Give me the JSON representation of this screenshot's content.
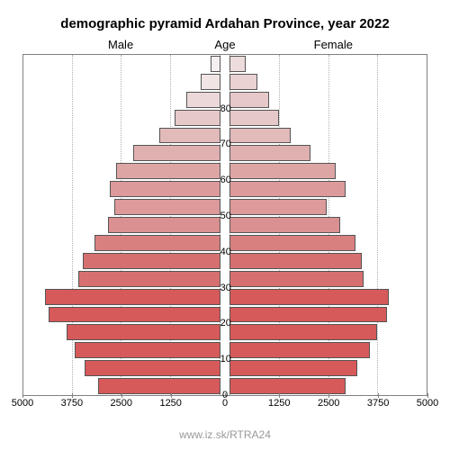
{
  "title": "demographic pyramid Ardahan Province, year 2022",
  "labels": {
    "male": "Male",
    "age": "Age",
    "female": "Female"
  },
  "watermark": "www.iz.sk/RTRA24",
  "chart": {
    "type": "population-pyramid",
    "background_color": "#ffffff",
    "border_color": "#808080",
    "grid_color": "#b0b0b0",
    "title_fontsize": 15,
    "label_fontsize": 13,
    "tick_fontsize": 11,
    "x_axis": {
      "max": 5000,
      "ticks": [
        5000,
        3750,
        2500,
        1250,
        0,
        1250,
        2500,
        3750,
        5000
      ]
    },
    "y_axis": {
      "ticks": [
        0,
        10,
        20,
        30,
        40,
        50,
        60,
        70,
        80
      ]
    },
    "age_groups": [
      {
        "age": 0,
        "male": 3100,
        "female": 2950,
        "color_m": "#d65a5a",
        "color_f": "#d65a5a"
      },
      {
        "age": 5,
        "male": 3450,
        "female": 3250,
        "color_m": "#d65a5a",
        "color_f": "#d65a5a"
      },
      {
        "age": 10,
        "male": 3700,
        "female": 3550,
        "color_m": "#d65a5a",
        "color_f": "#d65a5a"
      },
      {
        "age": 15,
        "male": 3900,
        "female": 3750,
        "color_m": "#d65a5a",
        "color_f": "#d65a5a"
      },
      {
        "age": 20,
        "male": 4350,
        "female": 4000,
        "color_m": "#d65a5a",
        "color_f": "#d65a5a"
      },
      {
        "age": 25,
        "male": 4450,
        "female": 4050,
        "color_m": "#d65a5a",
        "color_f": "#d65a5a"
      },
      {
        "age": 30,
        "male": 3600,
        "female": 3400,
        "color_m": "#d67070",
        "color_f": "#d67070"
      },
      {
        "age": 35,
        "male": 3500,
        "female": 3350,
        "color_m": "#d67070",
        "color_f": "#d67070"
      },
      {
        "age": 40,
        "male": 3200,
        "female": 3200,
        "color_m": "#d88080",
        "color_f": "#d88080"
      },
      {
        "age": 45,
        "male": 2850,
        "female": 2800,
        "color_m": "#da9090",
        "color_f": "#da9090"
      },
      {
        "age": 50,
        "male": 2700,
        "female": 2450,
        "color_m": "#dc9a9a",
        "color_f": "#dc9a9a"
      },
      {
        "age": 55,
        "male": 2800,
        "female": 2950,
        "color_m": "#dc9a9a",
        "color_f": "#dc9a9a"
      },
      {
        "age": 60,
        "male": 2650,
        "female": 2700,
        "color_m": "#dea5a5",
        "color_f": "#dea5a5"
      },
      {
        "age": 65,
        "male": 2200,
        "female": 2050,
        "color_m": "#e0b0b0",
        "color_f": "#e0b0b0"
      },
      {
        "age": 70,
        "male": 1550,
        "female": 1550,
        "color_m": "#e2baba",
        "color_f": "#e2baba"
      },
      {
        "age": 75,
        "male": 1150,
        "female": 1250,
        "color_m": "#e6c8c8",
        "color_f": "#e6c8c8"
      },
      {
        "age": 80,
        "male": 850,
        "female": 1000,
        "color_m": "#ecd8d8",
        "color_f": "#e6c8c8"
      },
      {
        "age": 85,
        "male": 500,
        "female": 700,
        "color_m": "#f0e4e4",
        "color_f": "#ead2d2"
      },
      {
        "age": 90,
        "male": 250,
        "female": 400,
        "color_m": "#f4f0f0",
        "color_f": "#eedcdc"
      }
    ]
  }
}
